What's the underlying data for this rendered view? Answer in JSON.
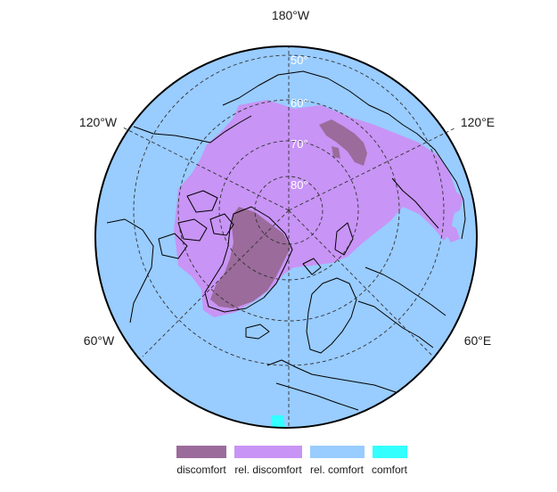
{
  "map": {
    "projection": "north-polar-orthographic",
    "longitude_labels": {
      "top": "180°W",
      "upper_left": "120°W",
      "upper_right": "120°E",
      "lower_left": "60°W",
      "lower_right": "60°E"
    },
    "latitude_labels": [
      "50°",
      "60°",
      "70°",
      "80°"
    ],
    "graticule": "dashed"
  },
  "legend": {
    "items": [
      {
        "label": "discomfort",
        "color": "#9b6b9b"
      },
      {
        "label": "rel. discomfort",
        "color": "#c894f5"
      },
      {
        "label": "rel. comfort",
        "color": "#99ccff"
      },
      {
        "label": "comfort",
        "color": "#33ffff"
      }
    ]
  },
  "colors": {
    "ocean_background": "#99ccff",
    "coastline": "#000000",
    "graticule": "#333333"
  }
}
